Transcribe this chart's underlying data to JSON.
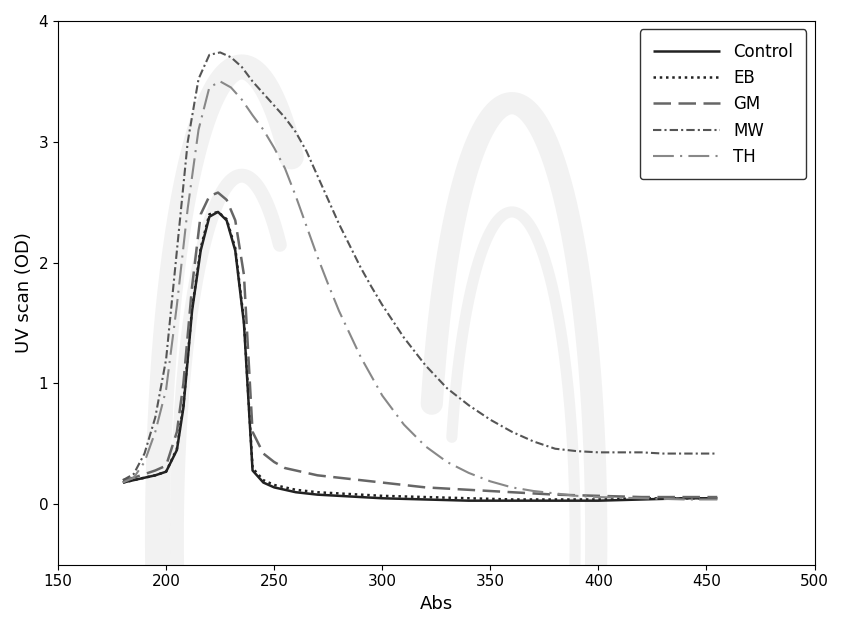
{
  "title": "",
  "xlabel": "Abs",
  "ylabel": "UV scan (OD)",
  "xlim": [
    150,
    500
  ],
  "ylim": [
    -0.5,
    4.0
  ],
  "xticks": [
    150,
    200,
    250,
    300,
    350,
    400,
    450,
    500
  ],
  "yticks": [
    0,
    1,
    2,
    3,
    4
  ],
  "series": [
    {
      "label": "Control",
      "color": "#222222",
      "linestyle": "solid",
      "linewidth": 1.8,
      "x": [
        180,
        185,
        190,
        195,
        200,
        205,
        208,
        212,
        216,
        220,
        224,
        228,
        232,
        236,
        240,
        245,
        250,
        255,
        260,
        265,
        270,
        280,
        290,
        300,
        320,
        340,
        360,
        380,
        400,
        420,
        440,
        455
      ],
      "y": [
        0.18,
        0.2,
        0.22,
        0.24,
        0.27,
        0.45,
        0.8,
        1.6,
        2.1,
        2.38,
        2.42,
        2.35,
        2.1,
        1.5,
        0.28,
        0.18,
        0.14,
        0.12,
        0.1,
        0.09,
        0.08,
        0.07,
        0.06,
        0.05,
        0.04,
        0.03,
        0.03,
        0.03,
        0.03,
        0.04,
        0.05,
        0.05
      ]
    },
    {
      "label": "EB",
      "color": "#222222",
      "linestyle": "dotted",
      "linewidth": 1.8,
      "x": [
        180,
        185,
        190,
        195,
        200,
        205,
        208,
        212,
        216,
        220,
        224,
        228,
        232,
        236,
        240,
        245,
        250,
        255,
        260,
        265,
        270,
        280,
        290,
        300,
        320,
        340,
        360,
        380,
        400,
        420,
        440,
        455
      ],
      "y": [
        0.18,
        0.2,
        0.22,
        0.24,
        0.27,
        0.46,
        0.82,
        1.62,
        2.12,
        2.4,
        2.42,
        2.36,
        2.12,
        1.52,
        0.3,
        0.2,
        0.16,
        0.14,
        0.12,
        0.11,
        0.1,
        0.09,
        0.08,
        0.07,
        0.06,
        0.05,
        0.04,
        0.04,
        0.04,
        0.05,
        0.05,
        0.05
      ]
    },
    {
      "label": "GM",
      "color": "#666666",
      "linestyle": "dashed",
      "linewidth": 1.8,
      "x": [
        180,
        185,
        190,
        195,
        200,
        205,
        208,
        212,
        216,
        220,
        224,
        228,
        232,
        236,
        240,
        245,
        250,
        255,
        260,
        265,
        270,
        280,
        290,
        300,
        310,
        320,
        330,
        340,
        350,
        360,
        370,
        380,
        400,
        420,
        440,
        455
      ],
      "y": [
        0.2,
        0.22,
        0.25,
        0.28,
        0.32,
        0.6,
        1.0,
        1.8,
        2.4,
        2.55,
        2.58,
        2.52,
        2.35,
        1.9,
        0.6,
        0.42,
        0.35,
        0.3,
        0.28,
        0.26,
        0.24,
        0.22,
        0.2,
        0.18,
        0.16,
        0.14,
        0.13,
        0.12,
        0.11,
        0.1,
        0.09,
        0.08,
        0.07,
        0.06,
        0.06,
        0.06
      ]
    },
    {
      "label": "MW",
      "color": "#555555",
      "linestyle": "dashdot",
      "linewidth": 1.5,
      "x": [
        180,
        185,
        190,
        195,
        200,
        205,
        210,
        215,
        220,
        225,
        230,
        235,
        240,
        245,
        250,
        255,
        260,
        265,
        270,
        275,
        280,
        285,
        290,
        295,
        300,
        310,
        320,
        330,
        340,
        350,
        360,
        370,
        380,
        390,
        400,
        410,
        420,
        430,
        440,
        455
      ],
      "y": [
        0.2,
        0.25,
        0.42,
        0.72,
        1.2,
        2.1,
        3.0,
        3.52,
        3.72,
        3.74,
        3.7,
        3.62,
        3.5,
        3.4,
        3.3,
        3.2,
        3.08,
        2.92,
        2.72,
        2.52,
        2.32,
        2.14,
        1.96,
        1.8,
        1.65,
        1.38,
        1.15,
        0.96,
        0.82,
        0.7,
        0.6,
        0.52,
        0.46,
        0.44,
        0.43,
        0.43,
        0.43,
        0.42,
        0.42,
        0.42
      ]
    },
    {
      "label": "TH",
      "color": "#888888",
      "linestyle": "loosely_dashdotted",
      "linewidth": 1.5,
      "x": [
        180,
        185,
        190,
        195,
        200,
        205,
        210,
        215,
        220,
        225,
        230,
        235,
        240,
        245,
        250,
        255,
        260,
        265,
        270,
        275,
        280,
        290,
        300,
        310,
        320,
        330,
        340,
        350,
        360,
        370,
        380,
        390,
        400,
        420,
        440,
        455
      ],
      "y": [
        0.18,
        0.22,
        0.35,
        0.6,
        0.95,
        1.65,
        2.45,
        3.1,
        3.45,
        3.5,
        3.45,
        3.35,
        3.22,
        3.1,
        2.95,
        2.78,
        2.55,
        2.3,
        2.05,
        1.82,
        1.6,
        1.22,
        0.9,
        0.66,
        0.48,
        0.35,
        0.26,
        0.19,
        0.14,
        0.11,
        0.09,
        0.07,
        0.06,
        0.05,
        0.04,
        0.04
      ]
    }
  ],
  "legend_loc": "upper right",
  "background_color": "#ffffff",
  "watermark_color": "#cccccc",
  "watermark_alpha": 0.25
}
